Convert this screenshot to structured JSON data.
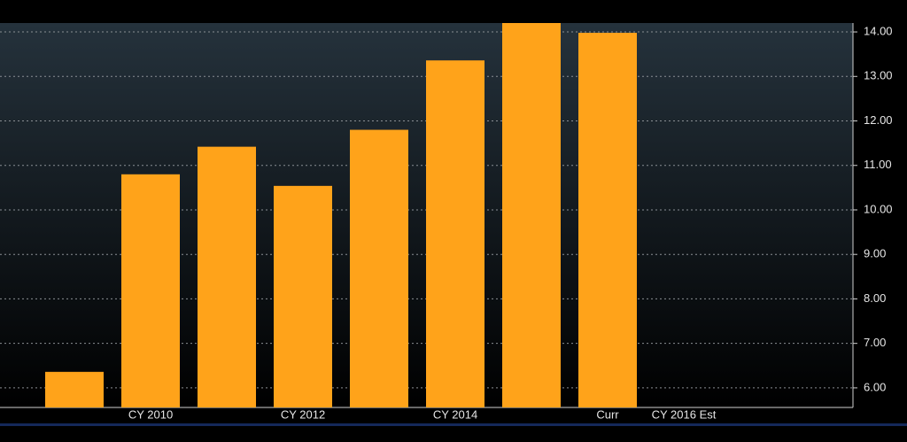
{
  "chart_data": {
    "type": "bar",
    "categories": [
      null,
      "CY 2010",
      null,
      "CY 2012",
      null,
      "CY 2014",
      null,
      "Curr",
      "CY 2016 Est"
    ],
    "values": [
      6.36,
      10.8,
      11.42,
      10.54,
      11.8,
      13.36,
      14.2,
      13.98,
      null
    ],
    "color": "#ffa31a",
    "ylim": [
      5.56,
      14.2
    ],
    "yticks": [
      {
        "value": 6,
        "label": "6.00"
      },
      {
        "value": 7,
        "label": "7.00"
      },
      {
        "value": 8,
        "label": "8.00"
      },
      {
        "value": 9,
        "label": "9.00"
      },
      {
        "value": 10,
        "label": "10.00"
      },
      {
        "value": 11,
        "label": "11.00"
      },
      {
        "value": 12,
        "label": "12.00"
      },
      {
        "value": 13,
        "label": "13.00"
      },
      {
        "value": 14,
        "label": "14.00"
      }
    ],
    "grid": true
  }
}
